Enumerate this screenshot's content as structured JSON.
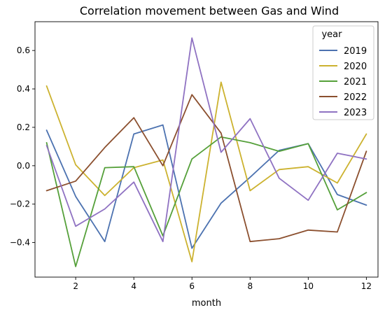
{
  "chart_data": {
    "type": "line",
    "title": "Correlation movement between Gas and Wind",
    "xlabel": "month",
    "ylabel": "",
    "x": [
      1,
      2,
      3,
      4,
      5,
      6,
      7,
      8,
      9,
      10,
      11,
      12
    ],
    "xlim": [
      0.6,
      12.4
    ],
    "ylim": [
      -0.58,
      0.75
    ],
    "xticks": [
      2,
      4,
      6,
      8,
      10,
      12
    ],
    "yticks": [
      -0.4,
      -0.2,
      0.0,
      0.2,
      0.4,
      0.6
    ],
    "ytick_labels": [
      "−0.4",
      "−0.2",
      "0.0",
      "0.2",
      "0.4",
      "0.6"
    ],
    "grid": false,
    "legend": {
      "title": "year",
      "position": "top-right"
    },
    "series": [
      {
        "name": "2019",
        "color": "#4c72b0",
        "values": [
          0.185,
          -0.16,
          -0.395,
          0.165,
          0.212,
          -0.43,
          -0.195,
          -0.06,
          0.08,
          0.115,
          -0.15,
          -0.205
        ]
      },
      {
        "name": "2020",
        "color": "#ccb22f",
        "values": [
          0.415,
          0.005,
          -0.155,
          -0.01,
          0.03,
          -0.5,
          0.435,
          -0.13,
          -0.02,
          -0.005,
          -0.09,
          0.165
        ]
      },
      {
        "name": "2021",
        "color": "#55a03a",
        "values": [
          0.12,
          -0.525,
          -0.01,
          -0.005,
          -0.365,
          0.035,
          0.15,
          0.12,
          0.075,
          0.115,
          -0.23,
          -0.14
        ]
      },
      {
        "name": "2022",
        "color": "#8b4f2e",
        "values": [
          -0.13,
          -0.08,
          0.095,
          0.25,
          0.0,
          0.37,
          0.17,
          -0.395,
          -0.38,
          -0.335,
          -0.345,
          0.075
        ]
      },
      {
        "name": "2023",
        "color": "#8f72c2",
        "values": [
          0.105,
          -0.315,
          -0.225,
          -0.085,
          -0.395,
          0.665,
          0.07,
          0.245,
          -0.065,
          -0.18,
          0.065,
          0.035
        ]
      }
    ]
  }
}
